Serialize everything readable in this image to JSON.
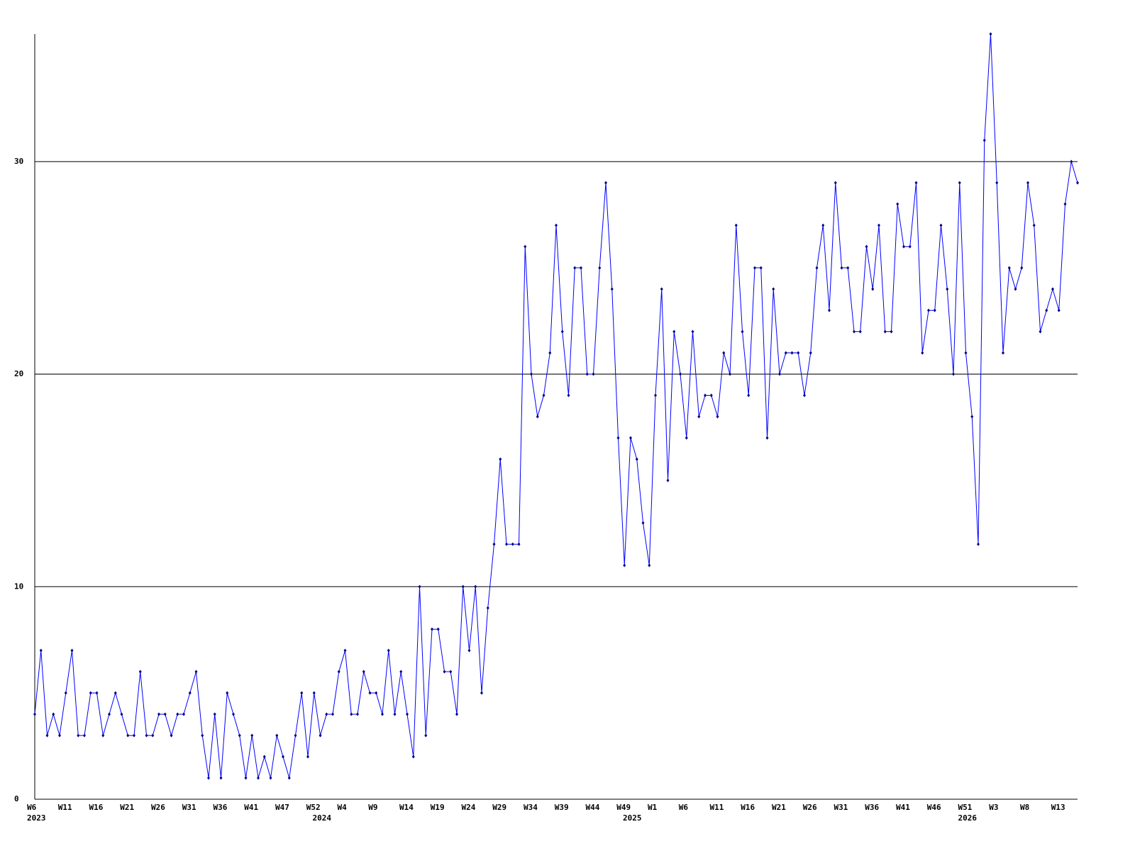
{
  "chart_data": {
    "type": "line",
    "categories": [
      "W6",
      null,
      null,
      null,
      null,
      "W11",
      null,
      null,
      null,
      null,
      "W16",
      null,
      null,
      null,
      null,
      "W21",
      null,
      null,
      null,
      null,
      "W26",
      null,
      null,
      null,
      null,
      "W31",
      null,
      null,
      null,
      null,
      "W36",
      null,
      null,
      null,
      null,
      "W41",
      null,
      null,
      null,
      null,
      "W47",
      null,
      null,
      null,
      null,
      "W52",
      null,
      null,
      null,
      null,
      "W4",
      null,
      null,
      null,
      null,
      "W9",
      null,
      null,
      null,
      null,
      "W14",
      null,
      null,
      null,
      null,
      "W19",
      null,
      null,
      null,
      null,
      "W24",
      null,
      null,
      null,
      null,
      "W29",
      null,
      null,
      null,
      null,
      "W34",
      null,
      null,
      null,
      null,
      "W39",
      null,
      null,
      null,
      null,
      "W44",
      null,
      null,
      null,
      null,
      "W49",
      null,
      null,
      null,
      null,
      "W1",
      null,
      null,
      null,
      null,
      "W6",
      null,
      null,
      null,
      null,
      "W11",
      null,
      null,
      null,
      null,
      "W16",
      null,
      null,
      null,
      null,
      "W21",
      null,
      null,
      null,
      null,
      "W26",
      null,
      null,
      null,
      null,
      "W31",
      null,
      null,
      null,
      null,
      "W36",
      null,
      null,
      null,
      null,
      "W41",
      null,
      null,
      null,
      null,
      "W46",
      null,
      null,
      null,
      null,
      "W51",
      null,
      null,
      null,
      null,
      "W3",
      null,
      null,
      null,
      null,
      "W8",
      null,
      null,
      null,
      null,
      "W13",
      null,
      null,
      null
    ],
    "year_labels": [
      "2023",
      null,
      null,
      null,
      null,
      null,
      null,
      null,
      null,
      null,
      null,
      null,
      null,
      null,
      null,
      null,
      null,
      null,
      null,
      null,
      null,
      null,
      null,
      null,
      null,
      null,
      null,
      null,
      null,
      null,
      null,
      null,
      null,
      null,
      null,
      null,
      null,
      null,
      null,
      null,
      null,
      null,
      null,
      null,
      null,
      null,
      "2024",
      null,
      null,
      null,
      null,
      null,
      null,
      null,
      null,
      null,
      null,
      null,
      null,
      null,
      null,
      null,
      null,
      null,
      null,
      null,
      null,
      null,
      null,
      null,
      null,
      null,
      null,
      null,
      null,
      null,
      null,
      null,
      null,
      null,
      null,
      null,
      null,
      null,
      null,
      null,
      null,
      null,
      null,
      null,
      null,
      null,
      null,
      null,
      null,
      null,
      "2025",
      null,
      null,
      null,
      null,
      null,
      null,
      null,
      null,
      null,
      null,
      null,
      null,
      null,
      null,
      null,
      null,
      null,
      null,
      null,
      null,
      null,
      null,
      null,
      null,
      null,
      null,
      null,
      null,
      null,
      null,
      null,
      null,
      null,
      null,
      null,
      null,
      null,
      null,
      null,
      null,
      null,
      null,
      null,
      null,
      null,
      null,
      null,
      null,
      null,
      null,
      null,
      null,
      null,
      "2026",
      null,
      null,
      null,
      null,
      null,
      null,
      null,
      null,
      null,
      null,
      null,
      null,
      null,
      null
    ],
    "series": [
      {
        "color": "#0000ff",
        "marker_color": "#000080",
        "values": [
          4,
          7,
          3,
          4,
          3,
          5,
          7,
          3,
          3,
          5,
          5,
          3,
          4,
          5,
          4,
          3,
          3,
          6,
          3,
          3,
          4,
          4,
          3,
          4,
          4,
          5,
          6,
          3,
          1,
          4,
          1,
          5,
          4,
          3,
          1,
          3,
          1,
          2,
          1,
          3,
          2,
          1,
          3,
          5,
          2,
          5,
          3,
          4,
          4,
          6,
          7,
          4,
          4,
          6,
          5,
          5,
          4,
          7,
          4,
          6,
          4,
          2,
          10,
          3,
          8,
          8,
          6,
          6,
          4,
          10,
          7,
          10,
          5,
          9,
          12,
          16,
          12,
          12,
          12,
          26,
          20,
          18,
          19,
          21,
          27,
          22,
          19,
          25,
          25,
          20,
          20,
          25,
          29,
          24,
          17,
          11,
          17,
          16,
          13,
          11,
          19,
          24,
          15,
          22,
          20,
          17,
          22,
          18,
          19,
          19,
          18,
          21,
          20,
          27,
          22,
          19,
          25,
          25,
          17,
          24,
          20,
          21,
          21,
          21,
          19,
          21,
          25,
          27,
          23,
          29,
          25,
          25,
          22,
          22,
          26,
          24,
          27,
          22,
          22,
          28,
          26,
          26,
          29,
          21,
          23,
          23,
          27,
          24,
          20,
          29,
          21,
          18,
          12,
          31,
          36,
          29,
          21,
          25,
          24,
          25,
          29,
          27,
          22,
          23,
          24,
          23,
          28,
          30,
          29
        ]
      }
    ],
    "ylim": [
      0,
      36
    ],
    "yticks": [
      0,
      10,
      20,
      30
    ],
    "grid": true
  }
}
